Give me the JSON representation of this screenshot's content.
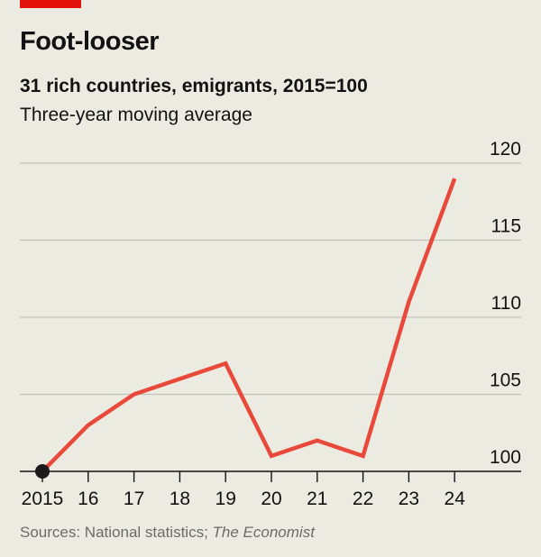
{
  "header": {
    "title": "Foot-looser",
    "subtitle": "31 rich countries, emigrants, 2015=100",
    "description": "Three-year moving average"
  },
  "footer": {
    "source_prefix": "Sources: National statistics; ",
    "source_italic": "The Economist"
  },
  "colors": {
    "accent": "#e3120b",
    "line": "#e8493a",
    "background": "#ecebe1",
    "marker": "#1a1a1a"
  },
  "chart_data": {
    "type": "line",
    "title": "Foot-looser",
    "subtitle": "31 rich countries, emigrants, 2015=100",
    "x": [
      "2015",
      "16",
      "17",
      "18",
      "19",
      "20",
      "21",
      "22",
      "23",
      "24"
    ],
    "series": [
      {
        "values": [
          100,
          103,
          105,
          106,
          107,
          101,
          102,
          101,
          111,
          119
        ]
      }
    ],
    "ylim": [
      100,
      120
    ],
    "yticks": [
      100,
      105,
      110,
      115,
      120
    ],
    "ytick_labels": [
      "100",
      "105",
      "110",
      "115",
      "120"
    ],
    "grid": true,
    "y_axis_side": "right",
    "start_marker": "2015"
  }
}
